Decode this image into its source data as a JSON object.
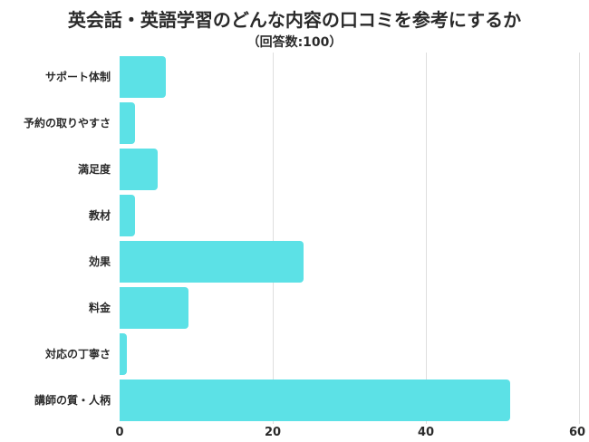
{
  "chart_data": {
    "type": "bar",
    "orientation": "horizontal",
    "title": "英会話・英語学習のどんな内容の口コミを参考にするか",
    "subtitle": "（回答数:100）",
    "categories": [
      "サポート体制",
      "予約の取りやすさ",
      "満足度",
      "教材",
      "効果",
      "料金",
      "対応の丁寧さ",
      "講師の質・人柄"
    ],
    "values": [
      6,
      2,
      5,
      2,
      24,
      9,
      1,
      51
    ],
    "xlabel": "",
    "ylabel": "",
    "xlim": [
      0,
      60
    ],
    "xticks": [
      "0",
      "20",
      "40",
      "60"
    ],
    "grid": true,
    "legend": null,
    "bar_color": "#5ce1e6"
  }
}
